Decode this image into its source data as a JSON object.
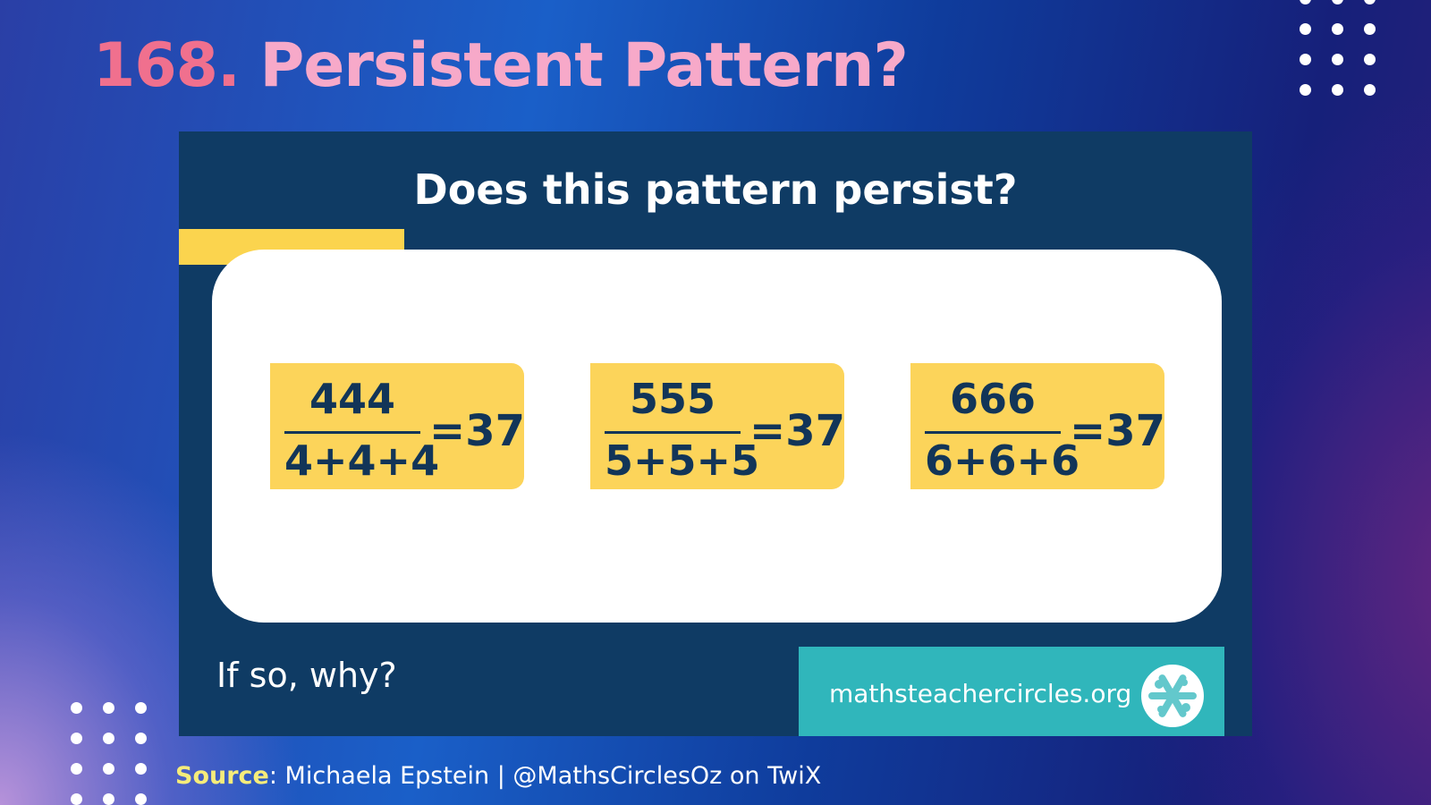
{
  "slide": {
    "number": "168.",
    "title": "Persistent Pattern?"
  },
  "card": {
    "heading": "Does this pattern persist?",
    "equations": [
      {
        "numerator": "444",
        "denominator": "4+4+4",
        "result": "=37"
      },
      {
        "numerator": "555",
        "denominator": "5+5+5",
        "result": "=37"
      },
      {
        "numerator": "666",
        "denominator": "6+6+6",
        "result": "=37"
      }
    ],
    "question": "If so, why?",
    "website": "mathsteachercircles.org"
  },
  "source": {
    "label": "Source",
    "text": ": Michaela Epstein | @MathsCirclesOz on TwiX"
  },
  "colors": {
    "title_number": "#f0708e",
    "title_text": "#f7a9c9",
    "card_background": "#0f3b64",
    "accent_yellow": "#fcd45a",
    "teal": "#30b6bb",
    "source_label": "#f6ec7a"
  },
  "icons": [
    "dot-grid-decoration",
    "maths-teacher-circles-logo-icon"
  ]
}
